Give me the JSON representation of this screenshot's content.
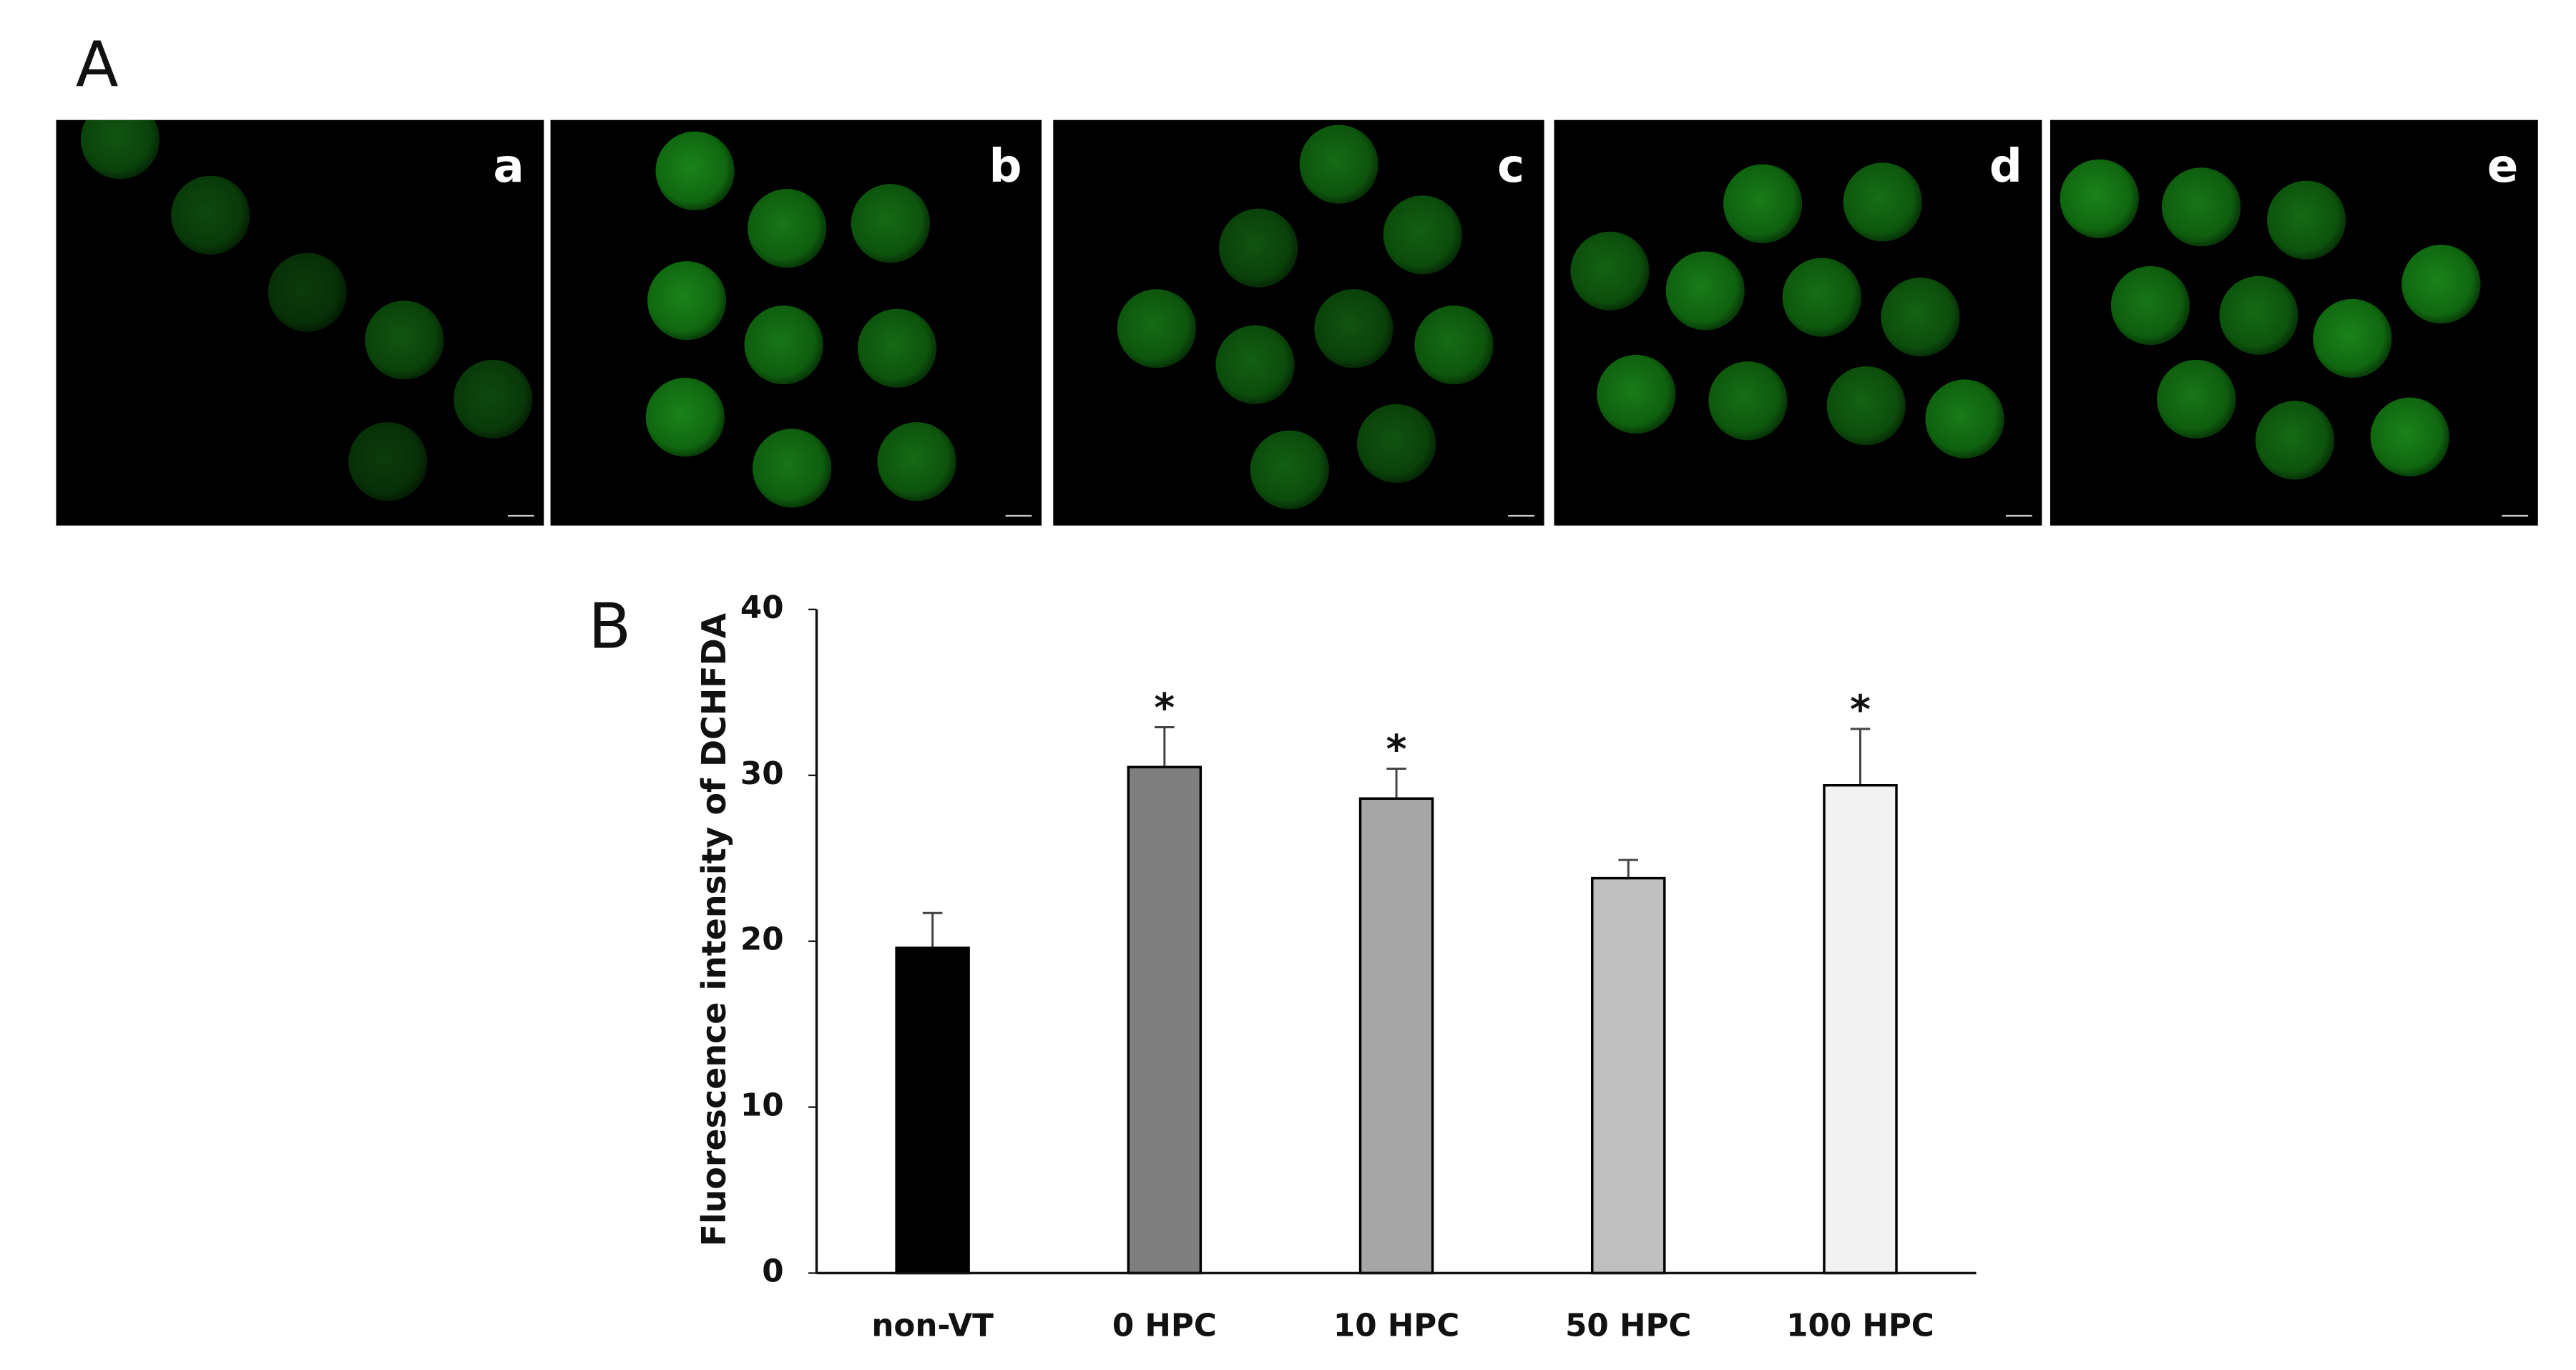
{
  "figure_a": {
    "label": "A",
    "panels": [
      "a",
      "b",
      "c",
      "d",
      "e"
    ]
  },
  "chart_data": {
    "type": "bar",
    "panel_label": "B",
    "y_label": "Fluorescence intensity of DCHFDA",
    "categories": [
      "non-VT",
      "0 HPC",
      "10 HPC",
      "50 HPC",
      "100 HPC"
    ],
    "values": [
      19.6,
      30.5,
      28.6,
      23.8,
      29.4
    ],
    "errors": [
      2.1,
      2.4,
      1.8,
      1.1,
      3.4
    ],
    "significance": [
      null,
      "*",
      "*",
      null,
      "*"
    ],
    "colors": [
      "#000000",
      "#7f7f7f",
      "#a6a6a6",
      "#bfbfbf",
      "#f2f2f2"
    ],
    "ylim": [
      0,
      40
    ],
    "yticks": [
      0,
      10,
      20,
      30,
      40
    ],
    "grid": false
  }
}
